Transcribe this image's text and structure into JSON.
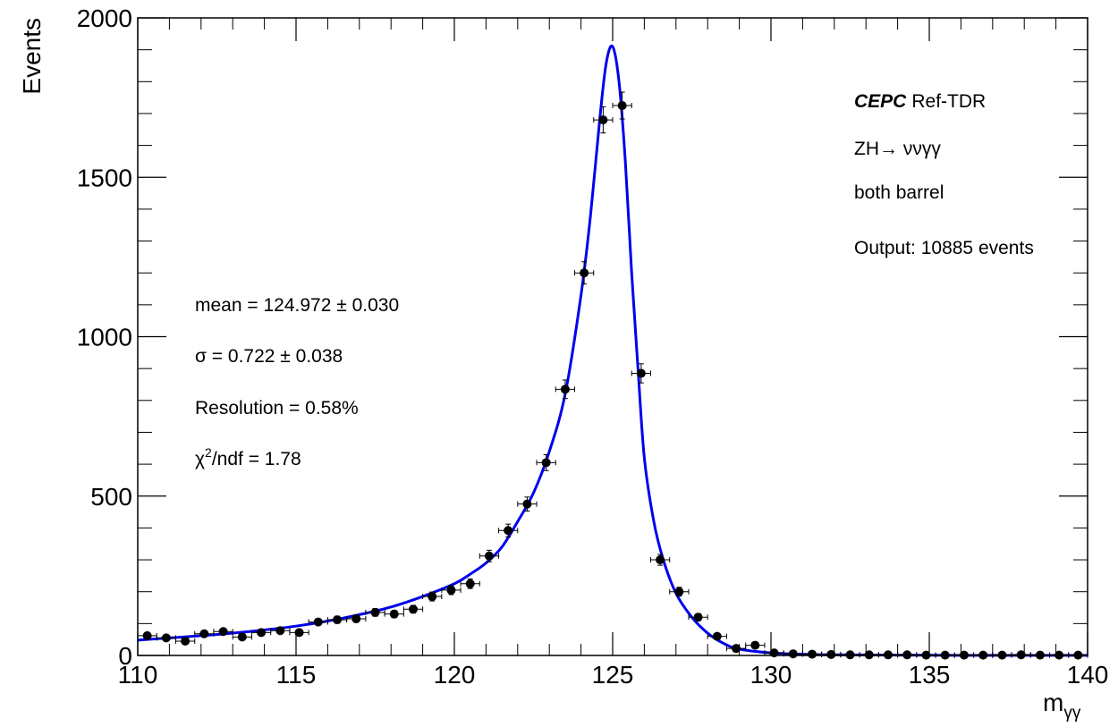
{
  "chart_data": {
    "type": "scatter",
    "xlabel": "m",
    "xlabel_sub": "γγ",
    "ylabel": "Events",
    "xlim": [
      110,
      140
    ],
    "ylim": [
      0,
      2000
    ],
    "x_ticks": [
      110,
      115,
      120,
      125,
      130,
      135,
      140
    ],
    "y_ticks": [
      0,
      500,
      1000,
      1500,
      2000
    ],
    "bin_width": 0.6,
    "grid": false,
    "series": [
      {
        "name": "",
        "style": "points-with-errors",
        "color": "#000000",
        "x": [
          110.3,
          110.9,
          111.5,
          112.1,
          112.7,
          113.3,
          113.9,
          114.5,
          115.1,
          115.7,
          116.3,
          116.9,
          117.5,
          118.1,
          118.7,
          119.3,
          119.9,
          120.5,
          121.1,
          121.7,
          122.3,
          122.9,
          123.5,
          124.1,
          124.7,
          125.3,
          125.9,
          126.5,
          127.1,
          127.7,
          128.3,
          128.9,
          129.5,
          130.1,
          130.7,
          131.3,
          131.9,
          132.5,
          133.1,
          133.7,
          134.3,
          134.9,
          135.5,
          136.1,
          136.7,
          137.3,
          137.9,
          138.5,
          139.1,
          139.7
        ],
        "y": [
          62,
          55,
          45,
          68,
          75,
          58,
          72,
          78,
          72,
          105,
          112,
          115,
          135,
          130,
          145,
          185,
          205,
          225,
          312,
          392,
          475,
          605,
          835,
          1200,
          1680,
          1725,
          885,
          300,
          200,
          120,
          60,
          22,
          32,
          8,
          5,
          4,
          3,
          2,
          2,
          2,
          2,
          1,
          1,
          1,
          1,
          1,
          2,
          1,
          1,
          1
        ],
        "yerr": [
          8,
          7,
          7,
          8,
          9,
          8,
          9,
          9,
          9,
          10,
          11,
          11,
          12,
          11,
          12,
          14,
          14,
          15,
          18,
          20,
          22,
          25,
          29,
          35,
          41,
          42,
          30,
          17,
          14,
          11,
          8,
          5,
          6,
          3,
          2,
          2,
          2,
          1,
          1,
          1,
          1,
          1,
          1,
          1,
          1,
          1,
          1,
          1,
          1,
          1
        ]
      },
      {
        "name": "",
        "style": "line",
        "color": "#0000ee",
        "x": [
          110,
          111,
          112,
          113,
          114,
          115,
          116,
          117,
          118,
          119,
          120,
          120.5,
          121,
          121.5,
          122,
          122.5,
          123,
          123.5,
          124,
          124.3,
          124.6,
          124.8,
          125,
          125.2,
          125.4,
          125.6,
          125.8,
          126,
          126.3,
          126.6,
          127,
          127.5,
          128,
          128.5,
          129,
          130,
          131,
          132,
          134,
          136,
          138,
          140
        ],
        "y": [
          48,
          55,
          62,
          70,
          80,
          92,
          108,
          128,
          152,
          185,
          225,
          255,
          290,
          340,
          420,
          510,
          640,
          820,
          1130,
          1380,
          1690,
          1860,
          1910,
          1800,
          1550,
          1200,
          900,
          620,
          420,
          300,
          195,
          120,
          70,
          38,
          20,
          8,
          4,
          2,
          1,
          0.5,
          0.3,
          0.2
        ]
      }
    ],
    "annotations": {
      "experiment": "CEPC",
      "label": "Ref-TDR",
      "process": "ZH→ ννγγ",
      "region": "both barrel",
      "output": "Output: 10885 events",
      "mean": "mean = 124.972 ± 0.030",
      "sigma": "σ = 0.722 ± 0.038",
      "resolution": "Resolution = 0.58%",
      "chi2_prefix": "χ",
      "chi2_sup": "2",
      "chi2_rest": "/ndf = 1.78"
    }
  }
}
